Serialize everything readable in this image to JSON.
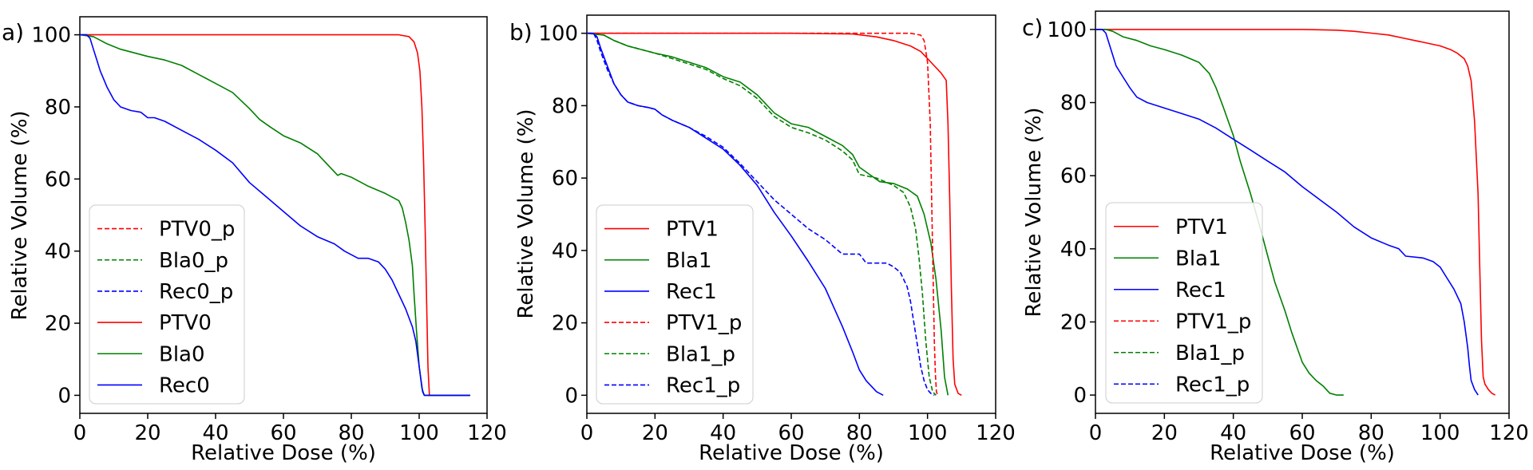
{
  "chart_data": [
    {
      "type": "line",
      "panel_label": "a)",
      "xlabel": "Relative Dose (%)",
      "ylabel": "Relative Volume (%)",
      "xlim": [
        0,
        120
      ],
      "ylim": [
        -5,
        105
      ],
      "xticks": [
        0,
        20,
        40,
        60,
        80,
        100,
        120
      ],
      "yticks": [
        0,
        20,
        40,
        60,
        80,
        100
      ],
      "legend_position": "lower-left",
      "legend": [
        "PTV0_p",
        "Bla0_p",
        "Rec0_p",
        "PTV0",
        "Bla0",
        "Rec0"
      ],
      "series": [
        {
          "name": "PTV0_p",
          "color": "#ff0000",
          "dashed": true,
          "x": [],
          "y": []
        },
        {
          "name": "Bla0_p",
          "color": "#008000",
          "dashed": true,
          "x": [],
          "y": []
        },
        {
          "name": "Rec0_p",
          "color": "#0000ff",
          "dashed": true,
          "x": [],
          "y": []
        },
        {
          "name": "PTV0",
          "color": "#ff0000",
          "dashed": false,
          "x": [
            0,
            20,
            40,
            60,
            80,
            94,
            97,
            98.5,
            99.5,
            100.2,
            100.8,
            101.3,
            101.8,
            102.2,
            102.6,
            103,
            115
          ],
          "y": [
            100,
            100,
            100,
            100,
            100,
            100,
            99.5,
            98,
            95,
            90,
            80,
            65,
            45,
            25,
            8,
            0,
            0
          ]
        },
        {
          "name": "Bla0",
          "color": "#008000",
          "dashed": false,
          "x": [
            0,
            4,
            8,
            12,
            16,
            20,
            25,
            30,
            35,
            40,
            45,
            50,
            53,
            56,
            60,
            65,
            70,
            74,
            76,
            77,
            80,
            85,
            90,
            94,
            95,
            96,
            97,
            98,
            98.5,
            99.2,
            100,
            100.8,
            101.5,
            103,
            115
          ],
          "y": [
            100,
            99.5,
            97.5,
            96,
            95,
            94,
            93,
            91.5,
            89,
            86.5,
            84,
            79.5,
            76.5,
            74.5,
            72,
            70,
            67,
            63,
            61,
            61.5,
            60.5,
            58,
            56,
            54,
            52,
            48,
            43,
            36,
            28,
            18,
            8,
            2,
            0,
            0,
            0
          ]
        },
        {
          "name": "Rec0",
          "color": "#0000ff",
          "dashed": false,
          "x": [
            0,
            2,
            3,
            4,
            5,
            6,
            8,
            10,
            12,
            15,
            18,
            20,
            22,
            25,
            30,
            35,
            40,
            45,
            50,
            55,
            60,
            65,
            70,
            75,
            78,
            80,
            82,
            85,
            88,
            90,
            92,
            94,
            96,
            98,
            99,
            100,
            101,
            101.5,
            103,
            115
          ],
          "y": [
            100,
            100,
            99,
            96,
            93,
            90,
            85.5,
            82,
            80,
            79,
            78.5,
            77,
            77,
            76,
            73.5,
            71,
            68,
            64.5,
            59,
            55,
            51,
            47,
            44,
            42,
            40,
            39,
            38,
            38,
            37,
            35,
            32,
            28,
            24,
            19,
            15,
            8,
            1,
            0,
            0,
            0
          ]
        }
      ]
    },
    {
      "type": "line",
      "panel_label": "b)",
      "xlabel": "Relative Dose (%)",
      "ylabel": "Relative Volume (%)",
      "xlim": [
        0,
        120
      ],
      "ylim": [
        -5,
        105
      ],
      "xticks": [
        0,
        20,
        40,
        60,
        80,
        100,
        120
      ],
      "yticks": [
        0,
        20,
        40,
        60,
        80,
        100
      ],
      "legend_position": "lower-left",
      "legend": [
        "PTV1",
        "Bla1",
        "Rec1",
        "PTV1_p",
        "Bla1_p",
        "Rec1_p"
      ],
      "series": [
        {
          "name": "PTV1",
          "color": "#ff0000",
          "dashed": false,
          "x": [
            0,
            60,
            78,
            85,
            90,
            95,
            98,
            100,
            102,
            104,
            105.5,
            106,
            106.5,
            107,
            107.5,
            108,
            109,
            110
          ],
          "y": [
            100,
            100,
            99.8,
            99,
            98,
            96.5,
            95,
            93,
            91,
            89,
            87,
            75,
            55,
            30,
            10,
            3,
            0.5,
            0
          ]
        },
        {
          "name": "Bla1",
          "color": "#008000",
          "dashed": false,
          "x": [
            0,
            5,
            8,
            12,
            16,
            20,
            25,
            30,
            35,
            40,
            45,
            50,
            55,
            60,
            65,
            70,
            75,
            78,
            80,
            83,
            86,
            90,
            94,
            97,
            99,
            101,
            102.5,
            104,
            105,
            106
          ],
          "y": [
            100,
            99.5,
            98,
            96.5,
            95.5,
            94.5,
            93.5,
            92,
            90.5,
            88,
            86.5,
            83,
            78,
            75,
            74,
            71.5,
            69,
            66.5,
            63,
            61,
            59,
            58.5,
            57,
            55,
            50,
            42,
            32,
            18,
            5,
            0
          ]
        },
        {
          "name": "Rec1",
          "color": "#0000ff",
          "dashed": false,
          "x": [
            0,
            2,
            3,
            4,
            6,
            8,
            10,
            12,
            15,
            18,
            20,
            22,
            25,
            30,
            35,
            40,
            45,
            50,
            55,
            60,
            65,
            70,
            75,
            78,
            80,
            82,
            84,
            85,
            86,
            87
          ],
          "y": [
            100,
            100,
            99,
            96,
            91,
            86,
            83,
            81,
            80,
            79.5,
            79,
            77.5,
            76,
            74,
            71,
            68,
            63.5,
            58,
            50.5,
            44,
            37,
            29.5,
            19,
            12,
            7,
            4,
            2,
            1,
            0.5,
            0
          ]
        },
        {
          "name": "PTV1_p",
          "color": "#ff0000",
          "dashed": true,
          "x": [
            0,
            80,
            90,
            95,
            98,
            99,
            100,
            100.8,
            101.3,
            101.7,
            102,
            102.3,
            102.6,
            103
          ],
          "y": [
            100,
            100,
            100,
            100,
            99.5,
            98,
            92,
            75,
            50,
            30,
            15,
            6,
            1,
            0
          ]
        },
        {
          "name": "Bla1_p",
          "color": "#008000",
          "dashed": true,
          "x": [
            0,
            5,
            8,
            12,
            16,
            20,
            25,
            30,
            35,
            40,
            45,
            50,
            55,
            60,
            65,
            70,
            75,
            78,
            80,
            85,
            90,
            93,
            95,
            96.5,
            97.5,
            98.5,
            99.5,
            100.5,
            101.5,
            102.5
          ],
          "y": [
            100,
            99.5,
            98,
            96.5,
            95.5,
            94.5,
            93,
            91.5,
            90,
            87.5,
            85.5,
            82,
            77,
            74,
            72.5,
            70.5,
            67.5,
            65,
            61,
            60,
            58,
            56,
            52,
            46,
            38,
            28,
            15,
            5,
            1,
            0
          ]
        },
        {
          "name": "Rec1_p",
          "color": "#0000ff",
          "dashed": true,
          "x": [
            0,
            2,
            3,
            4,
            6,
            8,
            10,
            12,
            15,
            18,
            20,
            22,
            25,
            30,
            35,
            40,
            45,
            50,
            55,
            60,
            65,
            70,
            75,
            80,
            82,
            85,
            88,
            90,
            92,
            94,
            95,
            96,
            97,
            98,
            99,
            100,
            101,
            102
          ],
          "y": [
            100,
            100,
            98,
            95,
            90,
            86,
            83,
            81,
            80,
            79.5,
            79,
            77.5,
            76,
            74,
            71.5,
            68.5,
            64,
            59,
            54,
            50,
            46,
            43,
            39,
            39,
            36.5,
            36.5,
            36.5,
            35.5,
            34,
            30,
            26,
            20,
            14,
            8,
            4,
            1.5,
            0.5,
            0
          ]
        }
      ]
    },
    {
      "type": "line",
      "panel_label": "c)",
      "xlabel": "Relative Dose (%)",
      "ylabel": "Relative Volume (%)",
      "xlim": [
        0,
        120
      ],
      "ylim": [
        -5,
        105
      ],
      "xticks": [
        0,
        20,
        40,
        60,
        80,
        100,
        120
      ],
      "yticks": [
        0,
        20,
        40,
        60,
        80,
        100
      ],
      "legend_position": "lower-left",
      "legend": [
        "PTV1",
        "Bla1",
        "Rec1",
        "PTV1_p",
        "Bla1_p",
        "Rec1_p"
      ],
      "series": [
        {
          "name": "PTV1",
          "color": "#ff0000",
          "dashed": false,
          "x": [
            0,
            30,
            50,
            60,
            70,
            75,
            80,
            85,
            90,
            95,
            100,
            103,
            105,
            107,
            108,
            109,
            110,
            111,
            111.5,
            112,
            112.5,
            113,
            114,
            115,
            116
          ],
          "y": [
            100,
            100,
            100,
            100,
            99.8,
            99.5,
            99,
            98.5,
            97.5,
            96.5,
            95.5,
            94.5,
            93.5,
            92,
            90,
            86,
            75,
            55,
            35,
            15,
            5,
            3,
            1.5,
            0.5,
            0
          ]
        },
        {
          "name": "Bla1",
          "color": "#008000",
          "dashed": false,
          "x": [
            0,
            3,
            5,
            8,
            12,
            16,
            20,
            25,
            30,
            33,
            35,
            37,
            40,
            42,
            45,
            48,
            50,
            52,
            55,
            57,
            60,
            62,
            64,
            66,
            68,
            70,
            72
          ],
          "y": [
            100,
            100,
            99.5,
            98,
            97,
            95.5,
            94.5,
            93,
            91,
            88,
            84,
            79,
            71,
            64,
            55,
            45,
            38,
            31,
            23,
            17,
            9,
            6,
            4,
            2.5,
            0.5,
            0,
            0
          ]
        },
        {
          "name": "Rec1",
          "color": "#0000ff",
          "dashed": false,
          "x": [
            0,
            2,
            3,
            4,
            5,
            6,
            8,
            10,
            12,
            15,
            20,
            25,
            30,
            35,
            40,
            45,
            50,
            55,
            60,
            65,
            70,
            75,
            80,
            85,
            88,
            90,
            95,
            98,
            100,
            102,
            104,
            106,
            107,
            108,
            108.5,
            109,
            110,
            111
          ],
          "y": [
            100,
            100,
            99,
            96,
            93,
            90,
            87,
            84,
            81.5,
            80,
            78.5,
            77,
            75.5,
            73,
            70,
            67,
            64,
            61,
            57,
            53.5,
            50,
            46,
            43,
            41,
            40,
            38,
            37.5,
            36.5,
            35,
            32,
            29,
            25,
            20,
            13,
            8,
            4,
            1.5,
            0
          ]
        },
        {
          "name": "PTV1_p",
          "color": "#ff0000",
          "dashed": true,
          "x": [],
          "y": []
        },
        {
          "name": "Bla1_p",
          "color": "#008000",
          "dashed": true,
          "x": [],
          "y": []
        },
        {
          "name": "Rec1_p",
          "color": "#0000ff",
          "dashed": true,
          "x": [],
          "y": []
        }
      ]
    }
  ]
}
